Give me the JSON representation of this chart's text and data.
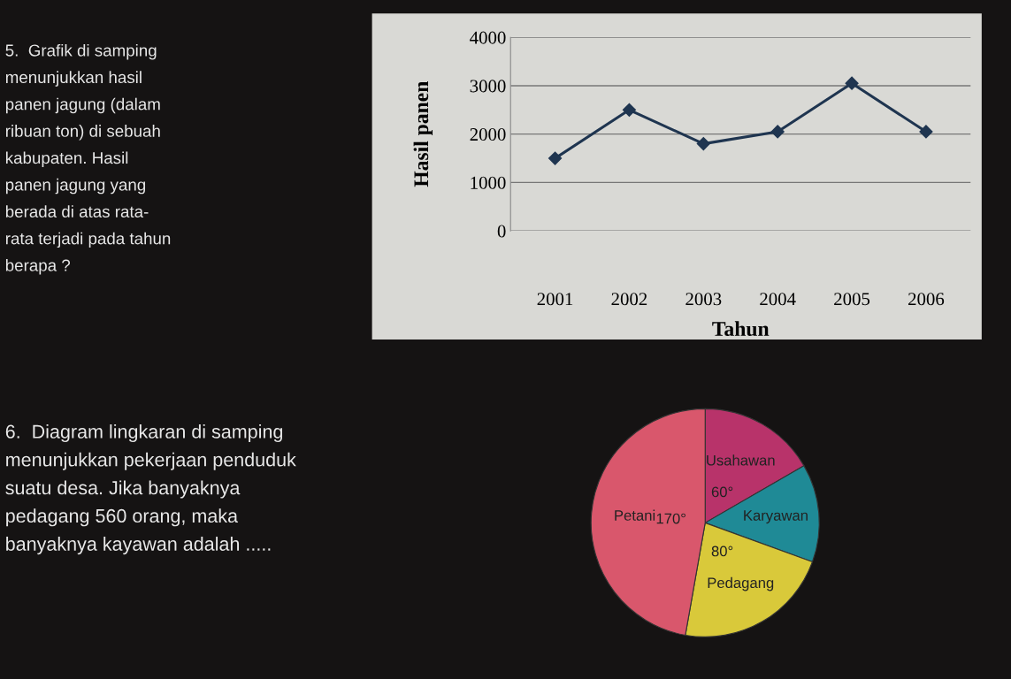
{
  "chart_data": [
    {
      "type": "line",
      "annotations": [
        "5.  Grafik di samping\nmenunjukkan hasil\npanen jagung (dalam\nribuan ton) di sebuah\nkabupaten. Hasil\npanen jagung yang\nberada di atas rata-\nrata terjadi pada tahun\nberapa ?"
      ],
      "xlabel": "Tahun",
      "ylabel": "Hasil panen",
      "categories": [
        "2001",
        "2002",
        "2003",
        "2004",
        "2005",
        "2006"
      ],
      "series": [
        {
          "color": "#1f3550",
          "values": [
            1500,
            2500,
            1800,
            2050,
            3050,
            2050
          ]
        }
      ],
      "ylim": [
        0,
        4000
      ],
      "yticks": [
        0,
        1000,
        2000,
        3000,
        4000
      ],
      "grid": "y",
      "marker": "diamond",
      "line_style": "solid"
    },
    {
      "type": "pie",
      "annotations": [
        "6.  Diagram lingkaran di samping\nmenunjukkan pekerjaan penduduk\nsuatu desa. Jika banyaknya\npedagang 560 orang, maka\nbanyaknya kayawan adalah ....."
      ],
      "categories": [
        "Usahawan",
        "Karyawan",
        "Pedagang",
        "Petani"
      ],
      "values": [
        60,
        50,
        80,
        170
      ],
      "colors": [
        "#b8336a",
        "#1f8a96",
        "#d9c93a",
        "#d9576c"
      ],
      "value_labels": [
        "60°",
        null,
        "80°",
        "170°"
      ]
    }
  ]
}
